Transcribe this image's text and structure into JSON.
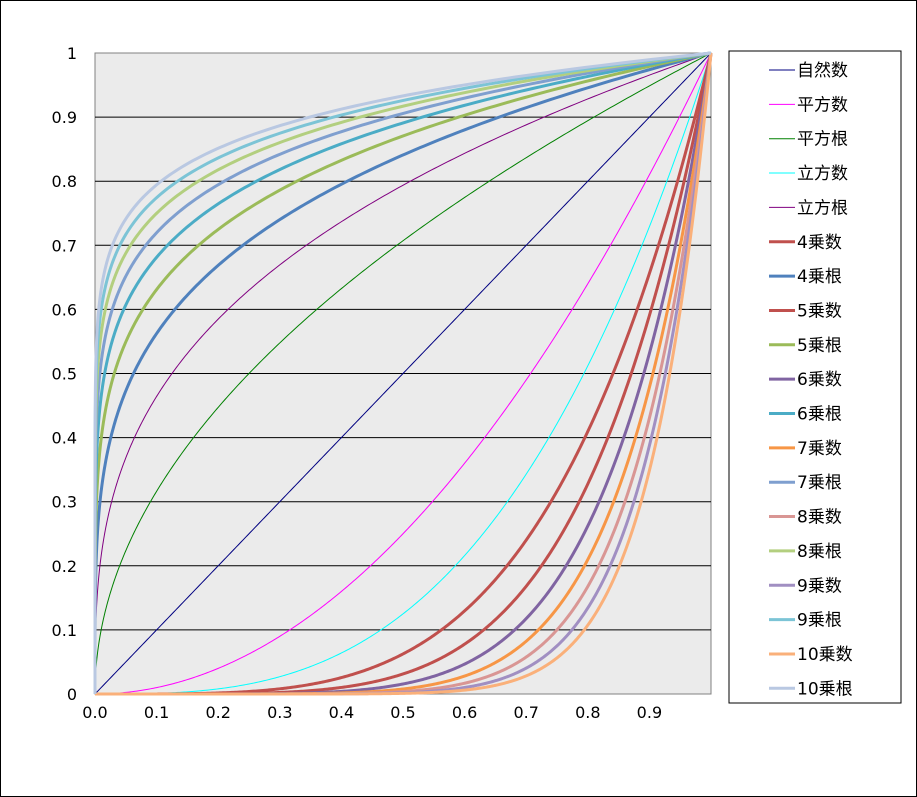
{
  "chart_data": {
    "type": "line",
    "xlim": [
      0,
      1
    ],
    "ylim": [
      0,
      1
    ],
    "x_ticks": [
      "0.0",
      "0.1",
      "0.2",
      "0.3",
      "0.4",
      "0.5",
      "0.6",
      "0.7",
      "0.8",
      "0.9"
    ],
    "y_ticks": [
      "0",
      "0.1",
      "0.2",
      "0.3",
      "0.4",
      "0.5",
      "0.6",
      "0.7",
      "0.8",
      "0.9",
      "1"
    ],
    "grid": "horizontal",
    "plot_background": "#ebebeb",
    "legend_position": "right",
    "series": [
      {
        "name": "自然数",
        "exponent": 1,
        "color": "#000080"
      },
      {
        "name": "平方数",
        "exponent": 2,
        "color": "#ff00ff"
      },
      {
        "name": "平方根",
        "exponent": 0.5,
        "color": "#008000"
      },
      {
        "name": "立方数",
        "exponent": 3,
        "color": "#00ffff"
      },
      {
        "name": "立方根",
        "exponent": 0.3333,
        "color": "#800080"
      },
      {
        "name": "4乗数",
        "exponent": 4,
        "color": "#c0504d"
      },
      {
        "name": "4乗根",
        "exponent": 0.25,
        "color": "#4f81bd"
      },
      {
        "name": "5乗数",
        "exponent": 5,
        "color": "#c0504d"
      },
      {
        "name": "5乗根",
        "exponent": 0.2,
        "color": "#9bbb59"
      },
      {
        "name": "6乗数",
        "exponent": 6,
        "color": "#8064a2"
      },
      {
        "name": "6乗根",
        "exponent": 0.1667,
        "color": "#4bacc6"
      },
      {
        "name": "7乗数",
        "exponent": 7,
        "color": "#f79646"
      },
      {
        "name": "7乗根",
        "exponent": 0.1429,
        "color": "#7f9fcf"
      },
      {
        "name": "8乗数",
        "exponent": 8,
        "color": "#d99694"
      },
      {
        "name": "8乗根",
        "exponent": 0.125,
        "color": "#b3cf7f"
      },
      {
        "name": "9乗数",
        "exponent": 9,
        "color": "#a18fc2"
      },
      {
        "name": "9乗根",
        "exponent": 0.1111,
        "color": "#7cc4d6"
      },
      {
        "name": "10乗数",
        "exponent": 10,
        "color": "#fab07a"
      },
      {
        "name": "10乗根",
        "exponent": 0.1,
        "color": "#b9c8e2"
      }
    ]
  }
}
